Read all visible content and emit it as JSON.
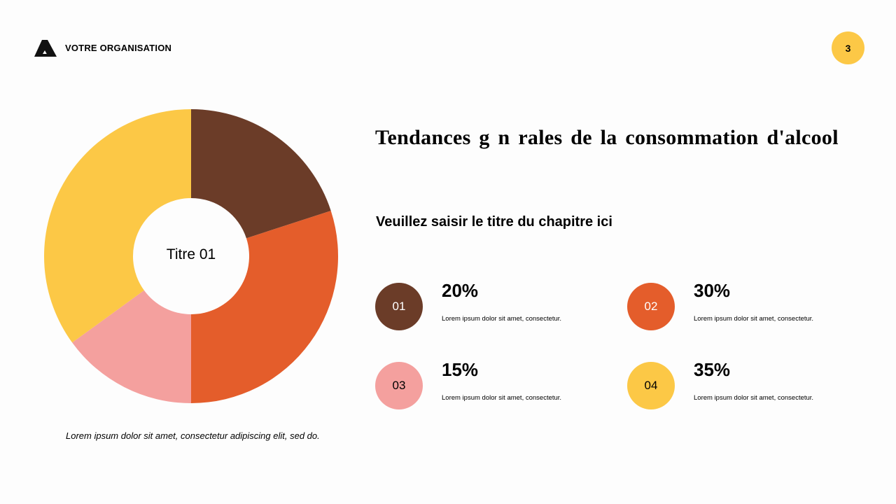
{
  "header": {
    "org_name": "VOTRE ORGANISATION",
    "page_number": "3"
  },
  "title": "Tendances g n rales de la consommation d'alcool",
  "subtitle": "Veuillez saisir le titre du chapitre ici",
  "caption": "Lorem ipsum dolor sit amet, consectetur adipiscing elit, sed do.",
  "chart_data": {
    "type": "pie",
    "subtype": "donut",
    "center_label": "Titre 01",
    "categories": [
      "01",
      "02",
      "03",
      "04"
    ],
    "values": [
      20,
      30,
      15,
      35
    ],
    "colors": [
      "#6b3c28",
      "#e45d2b",
      "#f4a09e",
      "#fcc846"
    ]
  },
  "items": [
    {
      "num": "01",
      "pct": "20%",
      "desc": "Lorem ipsum dolor sit amet, consectetur.",
      "color": "#6b3c28",
      "text_color": "#ffffff"
    },
    {
      "num": "02",
      "pct": "30%",
      "desc": "Lorem ipsum dolor sit amet, consectetur.",
      "color": "#e45d2b",
      "text_color": "#ffffff"
    },
    {
      "num": "03",
      "pct": "15%",
      "desc": "Lorem ipsum dolor sit amet, consectetur.",
      "color": "#f4a09e",
      "text_color": "#000000"
    },
    {
      "num": "04",
      "pct": "35%",
      "desc": "Lorem ipsum dolor sit amet, consectetur.",
      "color": "#fcc846",
      "text_color": "#000000"
    }
  ]
}
